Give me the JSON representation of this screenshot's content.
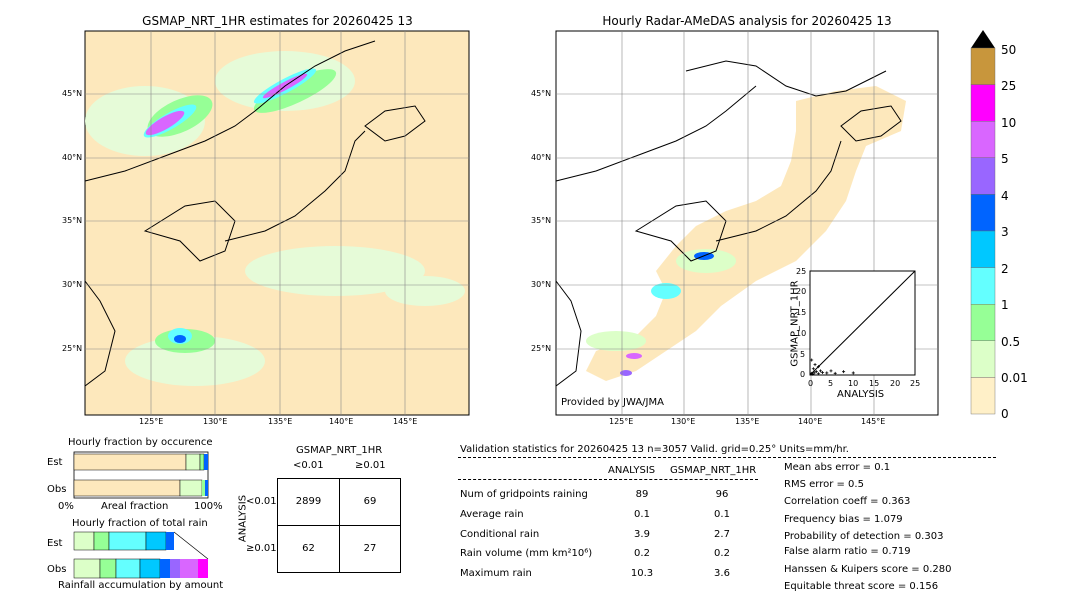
{
  "left_map": {
    "title": "GSMAP_NRT_1HR estimates for 20260425 13"
  },
  "right_map": {
    "title": "Hourly Radar-AMeDAS analysis for 20260425 13",
    "credit": "Provided by JWA/JMA"
  },
  "map_axes": {
    "lon_ticks": [
      "125°E",
      "130°E",
      "135°E",
      "140°E",
      "145°E"
    ],
    "lat_ticks": [
      "45°N",
      "40°N",
      "35°N",
      "30°N",
      "25°N"
    ]
  },
  "colorbar": {
    "labels": [
      "50",
      "25",
      "10",
      "5",
      "4",
      "3",
      "2",
      "1",
      "0.5",
      "0.01",
      "0"
    ],
    "colors": [
      "#c8963c",
      "#ff00ff",
      "#d966ff",
      "#9966ff",
      "#0064ff",
      "#00c8ff",
      "#64ffff",
      "#96ff96",
      "#dcffc8",
      "#fff0c8"
    ]
  },
  "scatter_inset": {
    "xlabel": "ANALYSIS",
    "ylabel": "GSMAP_NRT_1HR",
    "ticks": [
      "0",
      "5",
      "10",
      "15",
      "20",
      "25"
    ]
  },
  "occurrence": {
    "title": "Hourly fraction by occurence",
    "row_est": "Est",
    "row_obs": "Obs",
    "xlabel": "Areal fraction",
    "x0": "0%",
    "x1": "100%"
  },
  "total_rain": {
    "title": "Hourly fraction of total rain",
    "row_est": "Est",
    "row_obs": "Obs",
    "xlabel": "Rainfall accumulation by amount"
  },
  "contingency": {
    "title": "GSMAP_NRT_1HR",
    "col1": "<0.01",
    "col2": "≥0.01",
    "row_axis": "ANALYSIS",
    "row1": "<0.01",
    "row2": "≥0.01",
    "cells": [
      "2899",
      "69",
      "62",
      "27"
    ]
  },
  "validation": {
    "header": "Validation statistics for 20260425 13  n=3057 Valid. grid=0.25° Units=mm/hr.",
    "col_analysis": "ANALYSIS",
    "col_gsmap": "GSMAP_NRT_1HR",
    "rows": [
      {
        "label": "Num of gridpoints raining",
        "analysis": "89",
        "gsmap": "96"
      },
      {
        "label": "Average rain",
        "analysis": "0.1",
        "gsmap": "0.1"
      },
      {
        "label": "Conditional rain",
        "analysis": "3.9",
        "gsmap": "2.7"
      },
      {
        "label": "Rain volume (mm km²10⁶)",
        "analysis": "0.2",
        "gsmap": "0.2"
      },
      {
        "label": "Maximum rain",
        "analysis": "10.3",
        "gsmap": "3.6"
      }
    ],
    "scores": [
      "Mean abs error =    0.1",
      "RMS error =    0.5",
      "Correlation coeff =  0.363",
      "Frequency bias =  1.079",
      "Probability of detection =  0.303",
      "False alarm ratio =  0.719",
      "Hanssen & Kuipers score =  0.280",
      "Equitable threat score =  0.156"
    ]
  },
  "chart_data": [
    {
      "type": "heatmap",
      "title": "GSMAP_NRT_1HR estimates for 20260425 13",
      "x_ticks": [
        "125°E",
        "130°E",
        "135°E",
        "140°E",
        "145°E"
      ],
      "y_ticks": [
        "45°N",
        "40°N",
        "35°N",
        "30°N",
        "25°N"
      ]
    },
    {
      "type": "heatmap",
      "title": "Hourly Radar-AMeDAS analysis for 20260425 13",
      "x_ticks": [
        "125°E",
        "130°E",
        "135°E",
        "140°E",
        "145°E"
      ],
      "y_ticks": [
        "45°N",
        "40°N",
        "35°N",
        "30°N",
        "25°N"
      ]
    },
    {
      "type": "table",
      "title": "GSMAP_NRT_1HR",
      "columns": [
        "<0.01",
        "≥0.01"
      ],
      "rows": [
        "<0.01",
        "≥0.01"
      ],
      "values": [
        [
          2899,
          69
        ],
        [
          62,
          27
        ]
      ]
    },
    {
      "type": "scatter",
      "xlabel": "ANALYSIS",
      "ylabel": "GSMAP_NRT_1HR",
      "xlim": [
        0,
        25
      ],
      "ylim": [
        0,
        25
      ]
    }
  ]
}
